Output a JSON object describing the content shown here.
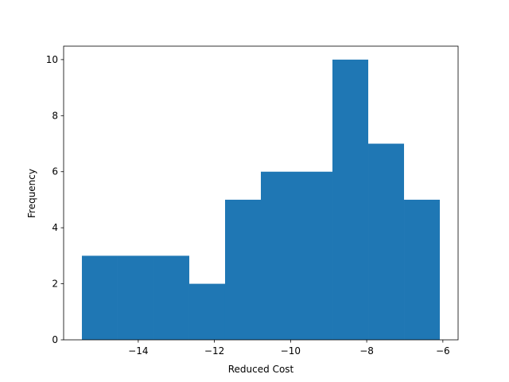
{
  "chart_data": {
    "type": "histogram",
    "xlabel": "Reduced Cost",
    "ylabel": "Frequency",
    "bins": [
      -15.48,
      -14.54,
      -13.6,
      -12.66,
      -11.72,
      -10.78,
      -9.84,
      -8.9,
      -7.96,
      -7.02,
      -6.08
    ],
    "counts": [
      3,
      3,
      3,
      2,
      5,
      6,
      6,
      10,
      7,
      5
    ],
    "color": "#1f77b4",
    "xlim": [
      -15.96,
      -5.6
    ],
    "xticks": [
      {
        "value": -14,
        "label": "−14"
      },
      {
        "value": -12,
        "label": "−12"
      },
      {
        "value": -10,
        "label": "−10"
      },
      {
        "value": -8,
        "label": "−8"
      },
      {
        "value": -6,
        "label": "−6"
      }
    ],
    "ylim": [
      0,
      10.48
    ],
    "yticks": [
      0,
      2,
      4,
      6,
      8,
      10
    ]
  }
}
